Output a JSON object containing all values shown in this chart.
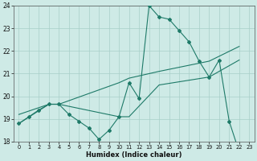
{
  "xlabel": "Humidex (Indice chaleur)",
  "xlim": [
    -0.5,
    23.5
  ],
  "ylim": [
    18,
    24
  ],
  "xticks": [
    0,
    1,
    2,
    3,
    4,
    5,
    6,
    7,
    8,
    9,
    10,
    11,
    12,
    13,
    14,
    15,
    16,
    17,
    18,
    19,
    20,
    21,
    22,
    23
  ],
  "yticks": [
    18,
    19,
    20,
    21,
    22,
    23,
    24
  ],
  "bg_color": "#ceeae6",
  "grid_color": "#a8cfc9",
  "line_color": "#1e7a68",
  "line1_x": [
    0,
    1,
    2,
    3,
    4,
    5,
    6,
    7,
    8,
    9,
    10,
    11,
    12,
    13,
    14,
    15,
    16,
    17,
    18,
    19,
    20,
    21,
    22,
    23
  ],
  "line1_y": [
    18.8,
    19.1,
    19.4,
    19.65,
    19.65,
    19.2,
    18.9,
    18.6,
    18.1,
    18.5,
    19.1,
    20.6,
    19.9,
    24.0,
    23.5,
    23.4,
    22.9,
    22.4,
    21.55,
    20.85,
    21.6,
    18.9,
    17.55,
    17.5
  ],
  "line2_x": [
    0,
    3,
    4,
    10,
    11,
    14,
    19,
    22
  ],
  "line2_y": [
    19.2,
    19.65,
    19.65,
    20.6,
    20.8,
    21.1,
    21.55,
    22.2
  ],
  "line3_x": [
    0,
    3,
    4,
    10,
    11,
    14,
    19,
    22
  ],
  "line3_y": [
    18.8,
    19.65,
    19.65,
    19.1,
    19.1,
    20.5,
    20.85,
    21.6
  ]
}
